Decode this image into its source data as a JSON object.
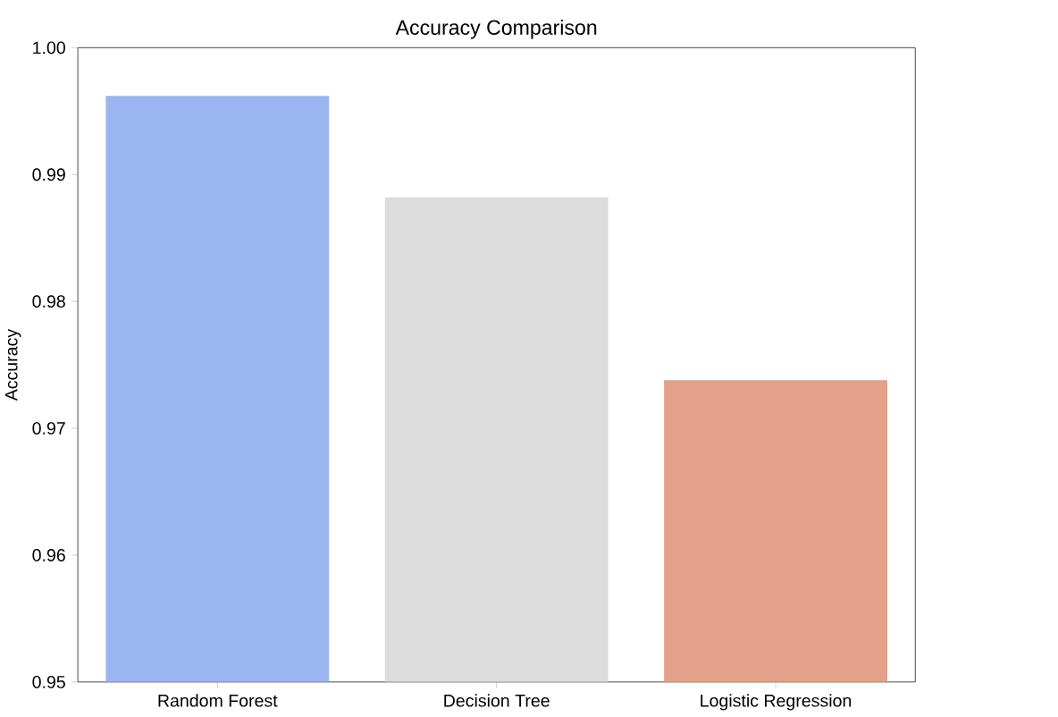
{
  "chart_data": {
    "type": "bar",
    "title": "Accuracy Comparison",
    "ylabel": "Accuracy",
    "categories": [
      "Random Forest",
      "Decision Tree",
      "Logistic Regression"
    ],
    "values": [
      0.9962,
      0.9882,
      0.9738
    ],
    "colors": [
      "#9bb5f0",
      "#dcdcdc",
      "#e4a189"
    ],
    "ylim": [
      0.95,
      1.0
    ],
    "yticks": [
      0.95,
      0.96,
      0.97,
      0.98,
      0.99,
      {
        "value": 1.0,
        "label": "1.00"
      }
    ]
  }
}
